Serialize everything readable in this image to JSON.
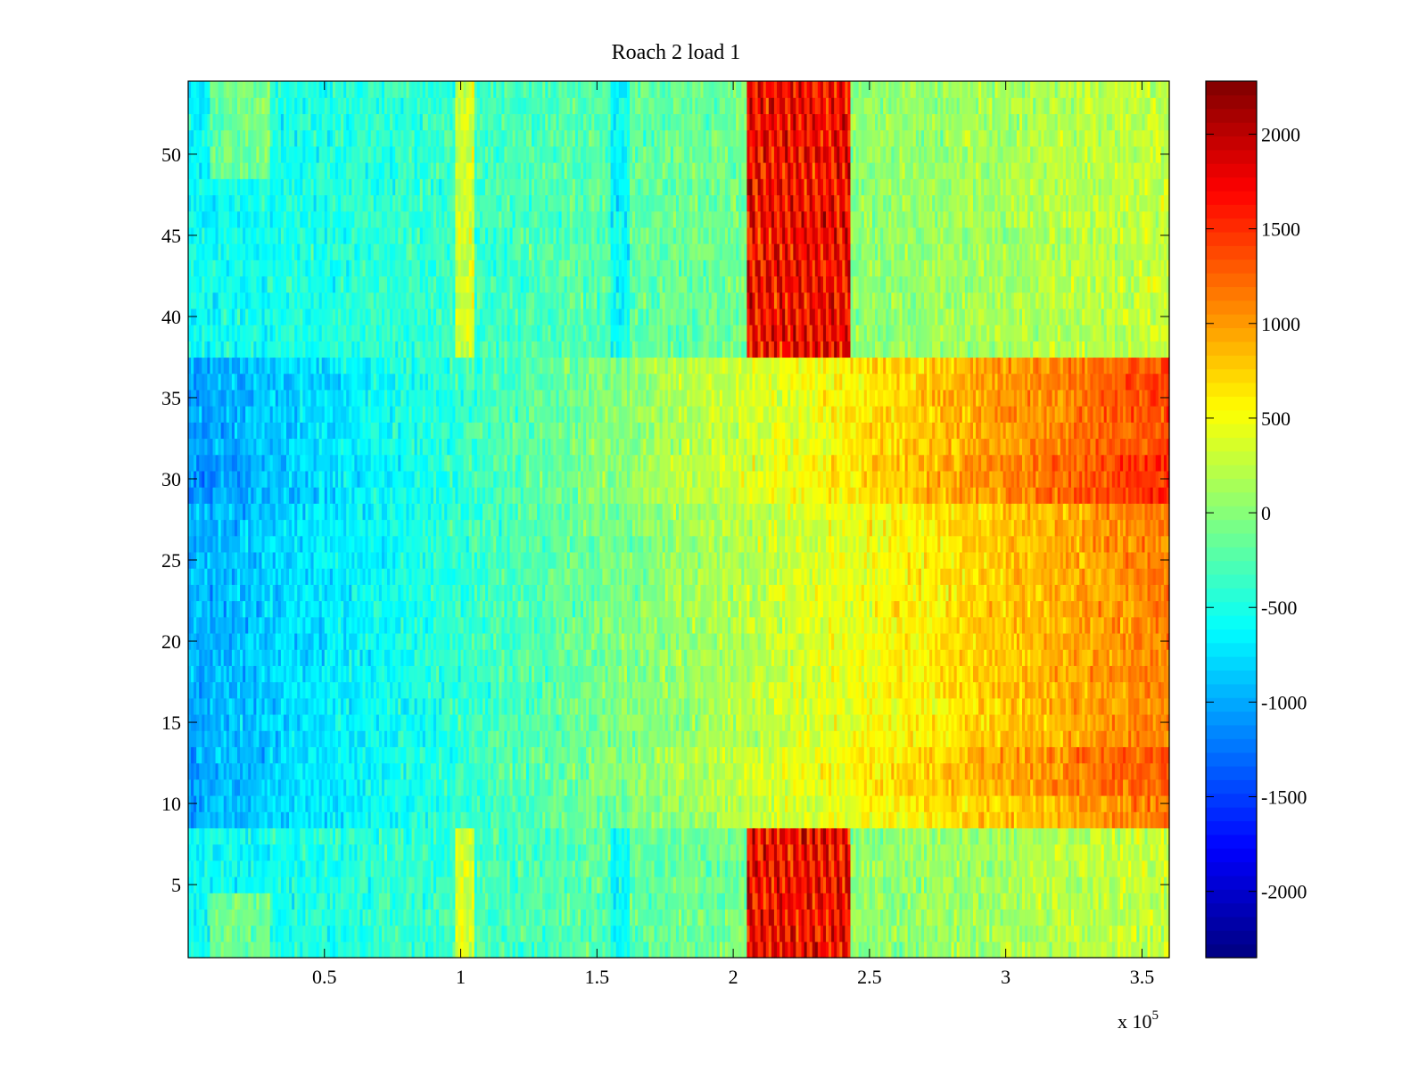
{
  "chart_data": {
    "type": "heatmap",
    "title": "Roach 2 load 1",
    "xlabel": "",
    "ylabel": "",
    "x_multiplier_label": "x 10",
    "x_multiplier_exponent": "5",
    "xlim": [
      0,
      360000
    ],
    "ylim": [
      0.5,
      54.5
    ],
    "x_ticks": [
      50000,
      100000,
      150000,
      200000,
      250000,
      300000,
      350000
    ],
    "x_tick_labels": [
      "0.5",
      "1",
      "1.5",
      "2",
      "2.5",
      "3",
      "3.5"
    ],
    "y_ticks": [
      5,
      10,
      15,
      20,
      25,
      30,
      35,
      40,
      45,
      50
    ],
    "y_tick_labels": [
      "5",
      "10",
      "15",
      "20",
      "25",
      "30",
      "35",
      "40",
      "45",
      "50"
    ],
    "rows": 54,
    "colormap": "jet",
    "clim": [
      -2350,
      2280
    ],
    "colorbar_ticks": [
      2000,
      1500,
      1000,
      500,
      0,
      -500,
      -1000,
      -1500,
      -2000
    ],
    "colorbar_tick_labels": [
      "2000",
      "1500",
      "1000",
      "500",
      "0",
      "-500",
      "-1000",
      "-1500",
      "-2000"
    ],
    "pattern_summary": {
      "base_trend": "values rise from about -1000 at x=0 to about +1100 at x=3.6e5 across rows 9-37",
      "bright_bands_x": [
        [
          205000,
          243000
        ]
      ],
      "bright_band_rows": [
        [
          1,
          8
        ],
        [
          38,
          54
        ]
      ],
      "bright_band_peak": 2100
    }
  }
}
